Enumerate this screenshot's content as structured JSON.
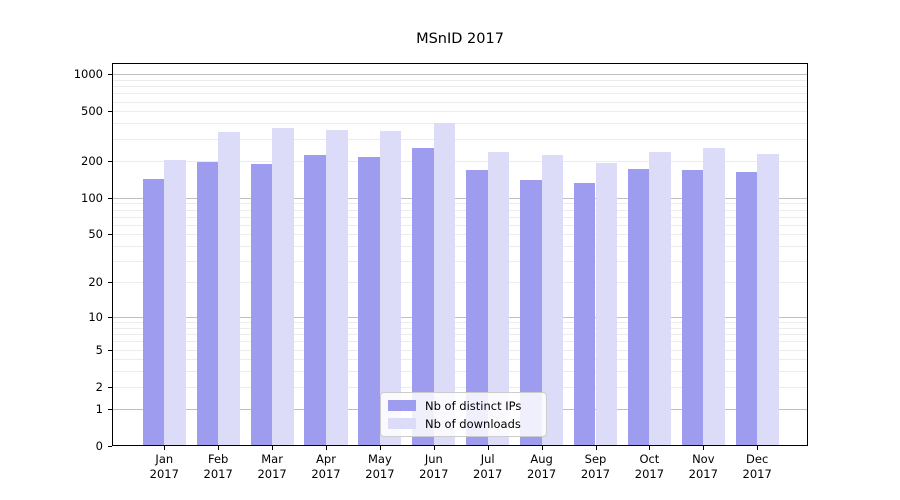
{
  "title": "MSnID 2017",
  "chart_data": {
    "type": "bar",
    "title": "MSnID 2017",
    "yscale": "log10(value+1)",
    "categories": [
      "Jan",
      "Feb",
      "Mar",
      "Apr",
      "May",
      "Jun",
      "Jul",
      "Aug",
      "Sep",
      "Oct",
      "Nov",
      "Dec"
    ],
    "year": "2017",
    "series": [
      {
        "name": "Nb of distinct IPs",
        "color": "#9d9cef",
        "values": [
          142,
          196,
          189,
          222,
          212,
          255,
          169,
          140,
          131,
          171,
          169,
          161
        ]
      },
      {
        "name": "Nb of downloads",
        "color": "#dcdcf8",
        "values": [
          203,
          343,
          365,
          353,
          346,
          405,
          234,
          224,
          191,
          237,
          254,
          227
        ]
      }
    ],
    "yticks": [
      0,
      1,
      2,
      5,
      10,
      20,
      50,
      100,
      200,
      500,
      1000
    ],
    "ylim": [
      0,
      1230
    ],
    "grid": true,
    "legend_position": "lower center",
    "colors": {
      "grid_minor": "#ececec",
      "grid_decade": "#bfbfbf",
      "frame": "#000000",
      "text": "#000000"
    }
  }
}
